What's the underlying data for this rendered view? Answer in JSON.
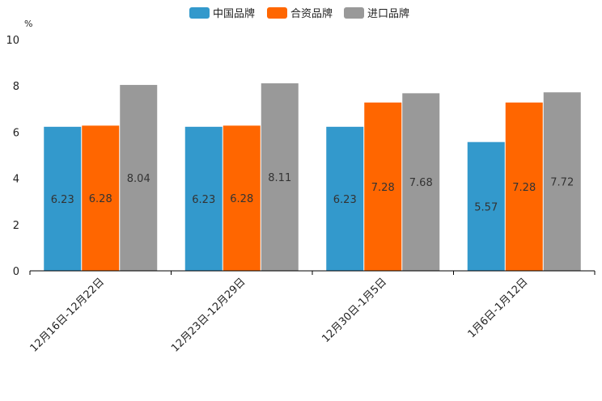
{
  "chart_data": {
    "type": "bar",
    "title": "",
    "xlabel": "",
    "ylabel": "%",
    "ylim": [
      0,
      10
    ],
    "yticks": [
      0,
      2,
      4,
      6,
      8,
      10
    ],
    "grid": false,
    "legend_position": "top-center",
    "categories": [
      "12月16日-12月22日",
      "12月23日-12月29日",
      "12月30日-1月5日",
      "1月6日-1月12日"
    ],
    "series": [
      {
        "name": "中国品牌",
        "color": "#3399cc",
        "values": [
          6.23,
          6.23,
          6.23,
          5.57
        ]
      },
      {
        "name": "合资品牌",
        "color": "#ff6600",
        "values": [
          6.28,
          6.28,
          7.28,
          7.28
        ]
      },
      {
        "name": "进口品牌",
        "color": "#999999",
        "values": [
          8.04,
          8.11,
          7.68,
          7.72
        ]
      }
    ]
  }
}
